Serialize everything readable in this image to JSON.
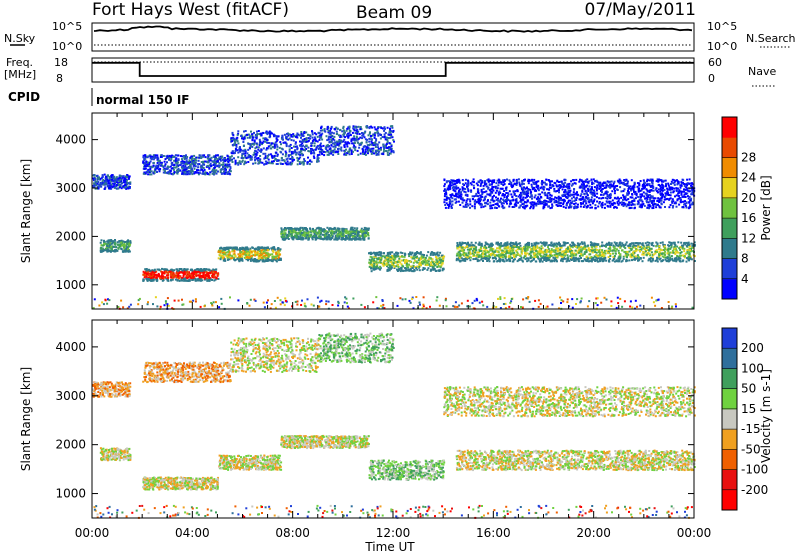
{
  "header": {
    "radar": "Fort Hays West (fitACF)",
    "beam": "Beam 09",
    "date": "07/May/2011"
  },
  "status_panels": {
    "nsky_label": "N.Sky",
    "nsky_ticks": [
      "10^5",
      "10^0"
    ],
    "nsearch_label": "N.Search",
    "nsearch_ticks": [
      "10^5",
      "10^0"
    ],
    "freq_label": "Freq.",
    "freq_unit": "[MHz]",
    "freq_ticks": [
      "18",
      "8"
    ],
    "nave_label": "Nave",
    "nave_ticks": [
      "60",
      "0"
    ],
    "cpid_label": "CPID",
    "cpid_value": "normal 150 IF",
    "freq_series": {
      "x_hours": [
        0,
        1.9,
        1.9,
        14.1,
        14.1,
        24
      ],
      "y_mhz": [
        16,
        16,
        10.5,
        10.5,
        16,
        16
      ]
    }
  },
  "chart_data": [
    {
      "type": "heatmap",
      "name": "power_panel",
      "ylabel": "Slant Range [km]",
      "yticks": [
        "1000",
        "2000",
        "3000",
        "4000"
      ],
      "ylim": [
        500,
        4550
      ],
      "xlim": [
        0,
        24
      ],
      "colorbar": {
        "label": "Power [dB]",
        "ticks": [
          "4",
          "8",
          "12",
          "16",
          "20",
          "24",
          "28"
        ],
        "colors": [
          "#0000ff",
          "#1f3fd8",
          "#2f7a8c",
          "#3f9f5c",
          "#6fc23f",
          "#e6d21f",
          "#f08c00",
          "#e84a00",
          "#ff0000"
        ]
      },
      "bands": [
        {
          "t0": 0.3,
          "t1": 1.5,
          "r0": 1700,
          "r1": 1950,
          "level": 3
        },
        {
          "t0": 2.0,
          "t1": 5.0,
          "r0": 1100,
          "r1": 1350,
          "level": 8
        },
        {
          "t0": 5.0,
          "t1": 7.5,
          "r0": 1500,
          "r1": 1800,
          "level": 5
        },
        {
          "t0": 7.5,
          "t1": 11.0,
          "r0": 1950,
          "r1": 2200,
          "level": 3
        },
        {
          "t0": 11.0,
          "t1": 14.0,
          "r0": 1300,
          "r1": 1700,
          "level": 4
        },
        {
          "t0": 14.5,
          "t1": 24.0,
          "r0": 1500,
          "r1": 1900,
          "level": 4
        },
        {
          "t0": 0.0,
          "t1": 1.5,
          "r0": 3000,
          "r1": 3300,
          "level": 1
        },
        {
          "t0": 2.0,
          "t1": 5.5,
          "r0": 3300,
          "r1": 3700,
          "level": 1
        },
        {
          "t0": 5.5,
          "t1": 9.0,
          "r0": 3500,
          "r1": 4200,
          "level": 1
        },
        {
          "t0": 9.0,
          "t1": 12.0,
          "r0": 3700,
          "r1": 4300,
          "level": 1
        },
        {
          "t0": 14.0,
          "t1": 24.0,
          "r0": 2600,
          "r1": 3200,
          "level": 0
        }
      ]
    },
    {
      "type": "heatmap",
      "name": "velocity_panel",
      "ylabel": "Slant Range [km]",
      "xlabel": "Time UT",
      "xticks": [
        "00:00",
        "04:00",
        "08:00",
        "12:00",
        "16:00",
        "20:00",
        "00:00"
      ],
      "yticks": [
        "1000",
        "2000",
        "3000",
        "4000"
      ],
      "ylim": [
        500,
        4550
      ],
      "xlim": [
        0,
        24
      ],
      "colorbar": {
        "label": "Velocity [m s-1]",
        "ticks": [
          "200",
          "100",
          "50",
          "15",
          "-15",
          "-50",
          "-100",
          "-200"
        ],
        "colors": [
          "#1f3fd8",
          "#2f6f9c",
          "#3f9f5c",
          "#6fd23f",
          "#c8c8c0",
          "#f0a020",
          "#f06000",
          "#e81010",
          "#ff0000"
        ]
      },
      "bands": [
        {
          "t0": 0.3,
          "t1": 1.5,
          "r0": 1700,
          "r1": 1950,
          "level": 4
        },
        {
          "t0": 2.0,
          "t1": 5.0,
          "r0": 1100,
          "r1": 1350,
          "level": 4
        },
        {
          "t0": 5.0,
          "t1": 7.5,
          "r0": 1500,
          "r1": 1800,
          "level": 4
        },
        {
          "t0": 7.5,
          "t1": 11.0,
          "r0": 1950,
          "r1": 2200,
          "level": 4
        },
        {
          "t0": 11.0,
          "t1": 14.0,
          "r0": 1300,
          "r1": 1700,
          "level": 3
        },
        {
          "t0": 14.5,
          "t1": 24.0,
          "r0": 1500,
          "r1": 1900,
          "level": 4
        },
        {
          "t0": 0.0,
          "t1": 1.5,
          "r0": 3000,
          "r1": 3300,
          "level": 5
        },
        {
          "t0": 2.0,
          "t1": 5.5,
          "r0": 3300,
          "r1": 3700,
          "level": 5
        },
        {
          "t0": 5.5,
          "t1": 9.0,
          "r0": 3500,
          "r1": 4200,
          "level": 4
        },
        {
          "t0": 9.0,
          "t1": 12.0,
          "r0": 3700,
          "r1": 4300,
          "level": 3
        },
        {
          "t0": 14.0,
          "t1": 24.0,
          "r0": 2600,
          "r1": 3200,
          "level": 4
        }
      ]
    }
  ]
}
